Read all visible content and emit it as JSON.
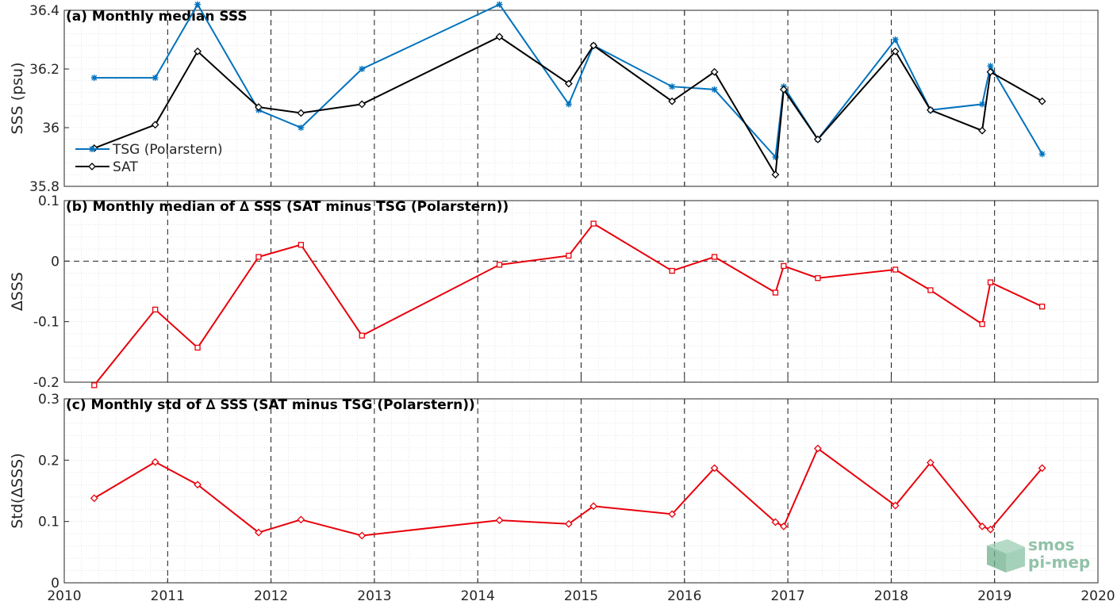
{
  "logo": {
    "line1": "smos",
    "line2": "pi-mep",
    "icon": "smos-pimep-logo-icon"
  },
  "colors": {
    "tsg": "#0072BD",
    "sat": "#000000",
    "delta": "#E8000B",
    "grid": "#d9d9d9"
  },
  "chart_data": [
    {
      "type": "line",
      "title": "(a) Monthly median SSS",
      "xlim": [
        2010,
        2020
      ],
      "ylim": [
        35.8,
        36.4
      ],
      "yticks": [
        35.8,
        36,
        36.2,
        36.4
      ],
      "ytick_labels": [
        "35.8",
        "36",
        "36.2",
        "36.4"
      ],
      "ylabel": "SSS (psu)",
      "grid": true,
      "legend_placement": "bottom-left",
      "series": [
        {
          "name": "TSG (Polarstern)",
          "color": "#0072BD",
          "marker": "asterisk",
          "x": [
            2010.29,
            2010.88,
            2011.29,
            2011.88,
            2012.29,
            2012.88,
            2014.21,
            2014.88,
            2015.12,
            2015.88,
            2016.29,
            2016.88,
            2016.96,
            2017.29,
            2018.04,
            2018.38,
            2018.88,
            2018.96,
            2019.46
          ],
          "y": [
            36.17,
            36.17,
            36.42,
            36.06,
            36.0,
            36.2,
            36.42,
            36.08,
            36.28,
            36.14,
            36.13,
            35.9,
            36.14,
            35.96,
            36.3,
            36.06,
            36.08,
            36.21,
            35.91
          ]
        },
        {
          "name": "SAT",
          "color": "#000000",
          "marker": "diamond",
          "x": [
            2010.29,
            2010.88,
            2011.29,
            2011.88,
            2012.29,
            2012.88,
            2014.21,
            2014.88,
            2015.12,
            2015.88,
            2016.29,
            2016.88,
            2016.96,
            2017.29,
            2018.04,
            2018.38,
            2018.88,
            2018.96,
            2019.46
          ],
          "y": [
            35.93,
            36.01,
            36.26,
            36.07,
            36.05,
            36.08,
            36.31,
            36.15,
            36.28,
            36.09,
            36.19,
            35.84,
            36.13,
            35.96,
            36.26,
            36.06,
            35.99,
            36.19,
            36.09
          ]
        }
      ]
    },
    {
      "type": "line",
      "title": "(b) Monthly median of ∆ SSS (SAT minus TSG (Polarstern))",
      "xlim": [
        2010,
        2020
      ],
      "ylim": [
        -0.2,
        0.1
      ],
      "yticks": [
        -0.2,
        -0.1,
        0,
        0.1
      ],
      "ytick_labels": [
        "-0.2",
        "-0.1",
        "0",
        "0.1"
      ],
      "ylabel": "∆SSS",
      "grid": true,
      "zero_line": true,
      "series": [
        {
          "color": "#E8000B",
          "marker": "square",
          "x": [
            2010.29,
            2010.88,
            2011.29,
            2011.88,
            2012.29,
            2012.88,
            2014.21,
            2014.88,
            2015.12,
            2015.88,
            2016.29,
            2016.88,
            2016.96,
            2017.29,
            2018.04,
            2018.38,
            2018.88,
            2018.96,
            2019.46
          ],
          "y": [
            -0.205,
            -0.08,
            -0.143,
            0.007,
            0.027,
            -0.123,
            -0.006,
            0.009,
            0.062,
            -0.016,
            0.007,
            -0.052,
            -0.008,
            -0.028,
            -0.014,
            -0.048,
            -0.104,
            -0.035,
            -0.075
          ]
        }
      ]
    },
    {
      "type": "line",
      "title": "(c) Monthly std of ∆ SSS (SAT minus TSG (Polarstern))",
      "xlim": [
        2010,
        2020
      ],
      "ylim": [
        0,
        0.3
      ],
      "yticks": [
        0,
        0.1,
        0.2,
        0.3
      ],
      "ytick_labels": [
        "0",
        "0.1",
        "0.2",
        "0.3"
      ],
      "ylabel": "Std(∆SSS)",
      "xticks": [
        2010,
        2011,
        2012,
        2013,
        2014,
        2015,
        2016,
        2017,
        2018,
        2019,
        2020
      ],
      "xtick_labels": [
        "2010",
        "2011",
        "2012",
        "2013",
        "2014",
        "2015",
        "2016",
        "2017",
        "2018",
        "2019",
        "2020"
      ],
      "grid": true,
      "series": [
        {
          "color": "#E8000B",
          "marker": "diamond",
          "x": [
            2010.29,
            2010.88,
            2011.29,
            2011.88,
            2012.29,
            2012.88,
            2014.21,
            2014.88,
            2015.12,
            2015.88,
            2016.29,
            2016.88,
            2016.96,
            2017.29,
            2018.04,
            2018.38,
            2018.88,
            2018.96,
            2019.46
          ],
          "y": [
            0.138,
            0.197,
            0.16,
            0.082,
            0.103,
            0.077,
            0.102,
            0.096,
            0.125,
            0.112,
            0.187,
            0.099,
            0.092,
            0.219,
            0.126,
            0.196,
            0.092,
            0.087,
            0.187
          ]
        }
      ]
    }
  ]
}
